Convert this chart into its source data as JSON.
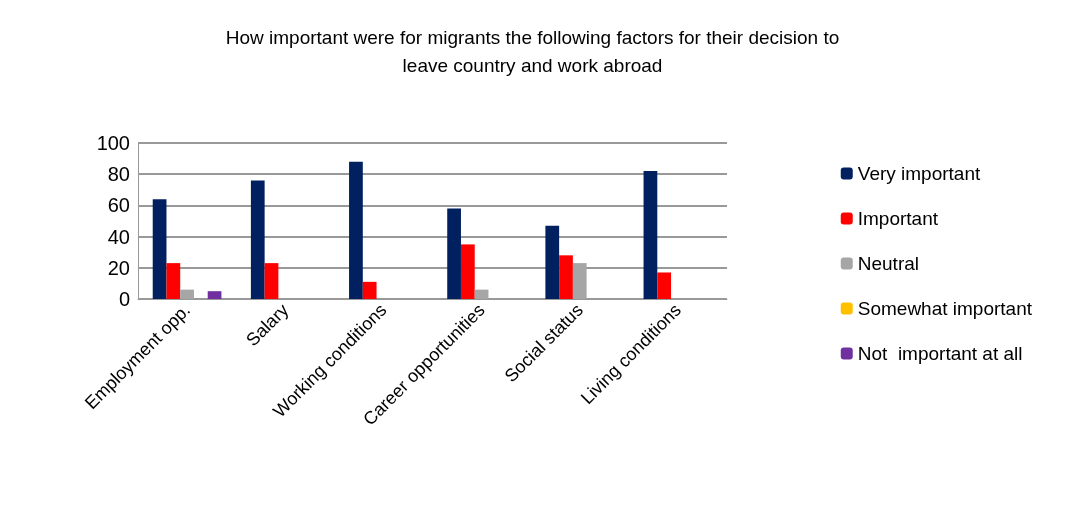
{
  "chart_data": {
    "type": "bar",
    "title": "How important were for migrants the following factors for their decision to\nleave country and work abroad",
    "categories": [
      "Employment opp.",
      "Salary",
      "Working conditions",
      "Career opportunities",
      "Social status",
      "Living conditions"
    ],
    "series": [
      {
        "name": "Very important",
        "color": "#002060",
        "values": [
          64,
          76,
          88,
          58,
          47,
          82
        ]
      },
      {
        "name": "Important",
        "color": "#ff0000",
        "values": [
          23,
          23,
          11,
          35,
          28,
          17
        ]
      },
      {
        "name": "Neutral",
        "color": "#a6a6a6",
        "values": [
          6,
          0,
          0,
          6,
          23,
          0
        ]
      },
      {
        "name": "Somewhat important",
        "color": "#ffc000",
        "values": [
          0,
          0,
          0,
          0,
          0,
          0
        ]
      },
      {
        "name": "Not  important at all",
        "color": "#7030a0",
        "values": [
          5,
          0,
          0,
          0,
          0,
          0
        ]
      }
    ],
    "ylim": [
      0,
      100
    ],
    "yticks": [
      0,
      20,
      40,
      60,
      80,
      100
    ],
    "grid": "y",
    "legend": "right"
  }
}
